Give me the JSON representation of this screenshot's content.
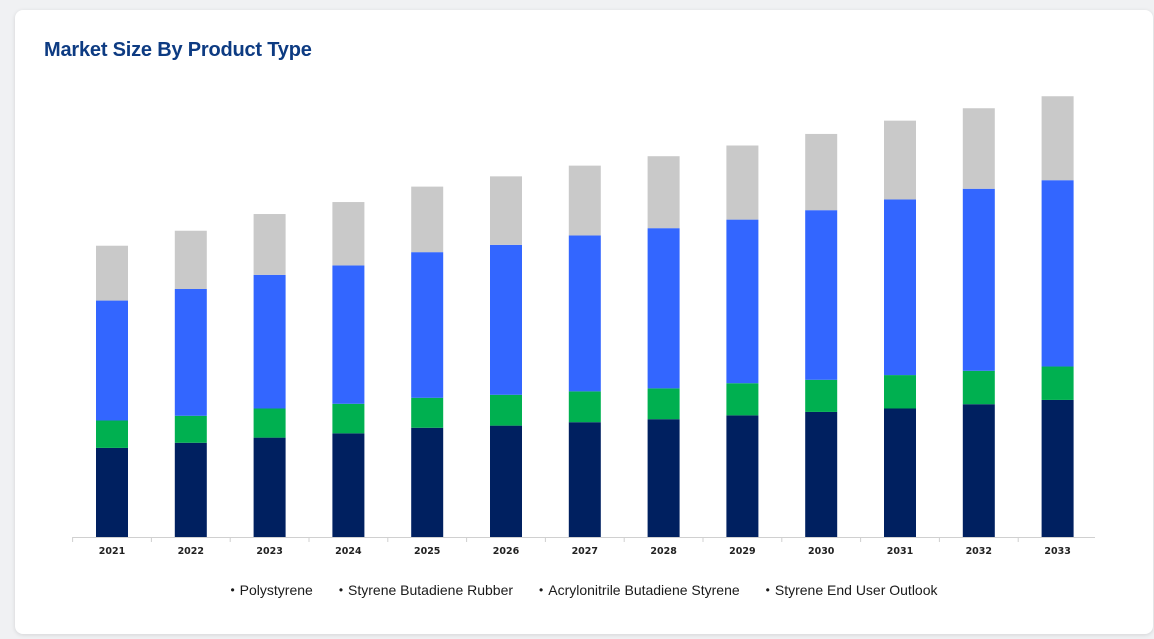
{
  "title": "Market Size By Product Type",
  "chart_data": {
    "type": "bar",
    "stacked": true,
    "categories": [
      "2021",
      "2022",
      "2023",
      "2024",
      "2025",
      "2026",
      "2027",
      "2028",
      "2029",
      "2030",
      "2031",
      "2032",
      "2033"
    ],
    "series": [
      {
        "name": "Polystyrene",
        "color": "#002060",
        "values": [
          20.8,
          22.0,
          23.2,
          24.2,
          25.5,
          26.0,
          26.8,
          27.5,
          28.4,
          29.2,
          30.0,
          31.0,
          32.0
        ]
      },
      {
        "name": "Styrene Butadiene Rubber",
        "color": "#00b050",
        "values": [
          6.4,
          6.3,
          6.8,
          6.9,
          7.0,
          7.2,
          7.2,
          7.2,
          7.5,
          7.5,
          7.8,
          7.8,
          7.8
        ]
      },
      {
        "name": "Acrylonitrile Butadiene Styrene",
        "color": "#3366ff",
        "values": [
          28.0,
          29.6,
          31.2,
          32.3,
          34.0,
          35.0,
          36.4,
          37.4,
          38.2,
          39.6,
          41.0,
          42.5,
          43.5
        ]
      },
      {
        "name": "Styrene End User Outlook",
        "color": "#c9c9c9",
        "values": [
          12.8,
          13.6,
          14.2,
          14.8,
          15.3,
          16.0,
          16.3,
          16.8,
          17.3,
          17.8,
          18.4,
          18.8,
          19.6
        ]
      }
    ],
    "ylim": [
      0,
      120
    ],
    "grid": false,
    "legend_position": "bottom-center"
  }
}
